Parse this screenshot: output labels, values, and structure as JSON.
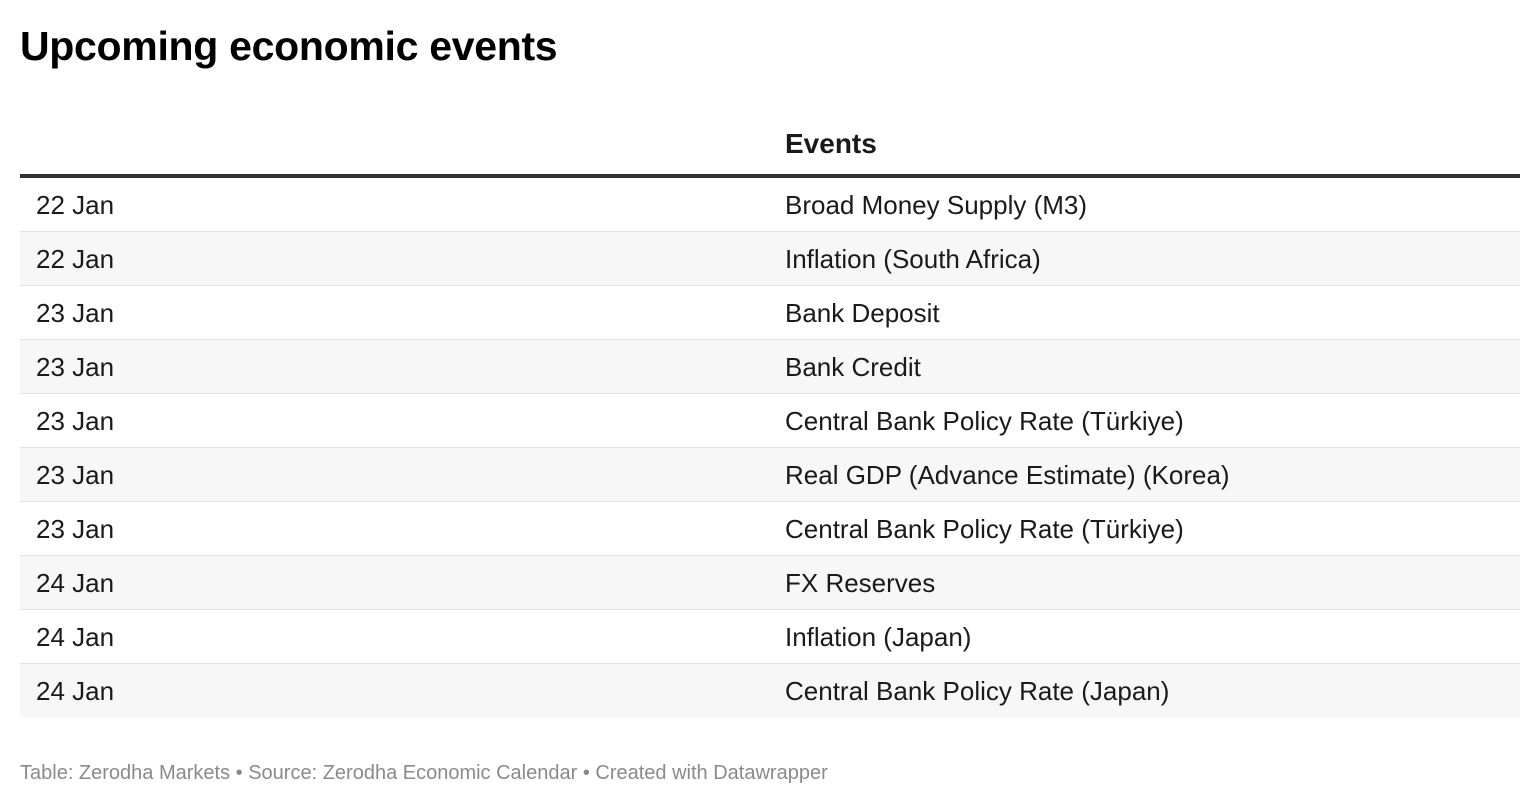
{
  "title": "Upcoming economic events",
  "table": {
    "headers": {
      "date": "",
      "event": "Events"
    },
    "rows": [
      {
        "date": "22 Jan",
        "event": "Broad Money Supply (M3)"
      },
      {
        "date": "22 Jan",
        "event": "Inflation (South Africa)"
      },
      {
        "date": "23 Jan",
        "event": "Bank Deposit"
      },
      {
        "date": "23 Jan",
        "event": "Bank Credit"
      },
      {
        "date": "23 Jan",
        "event": "Central Bank Policy Rate (Türkiye)"
      },
      {
        "date": "23 Jan",
        "event": "Real GDP (Advance Estimate) (Korea)"
      },
      {
        "date": "23 Jan",
        "event": "Central Bank Policy Rate (Türkiye)"
      },
      {
        "date": "24 Jan",
        "event": "FX Reserves"
      },
      {
        "date": "24 Jan",
        "event": "Inflation (Japan)"
      },
      {
        "date": "24 Jan",
        "event": "Central Bank Policy Rate (Japan)"
      }
    ]
  },
  "footer": "Table: Zerodha Markets • Source: Zerodha Economic Calendar • Created with Datawrapper",
  "colors": {
    "header_rule": "#333333",
    "alt_row_bg": "#f7f7f7",
    "row_divider": "#e2e2e2",
    "footer_text": "#8a8a8a"
  }
}
